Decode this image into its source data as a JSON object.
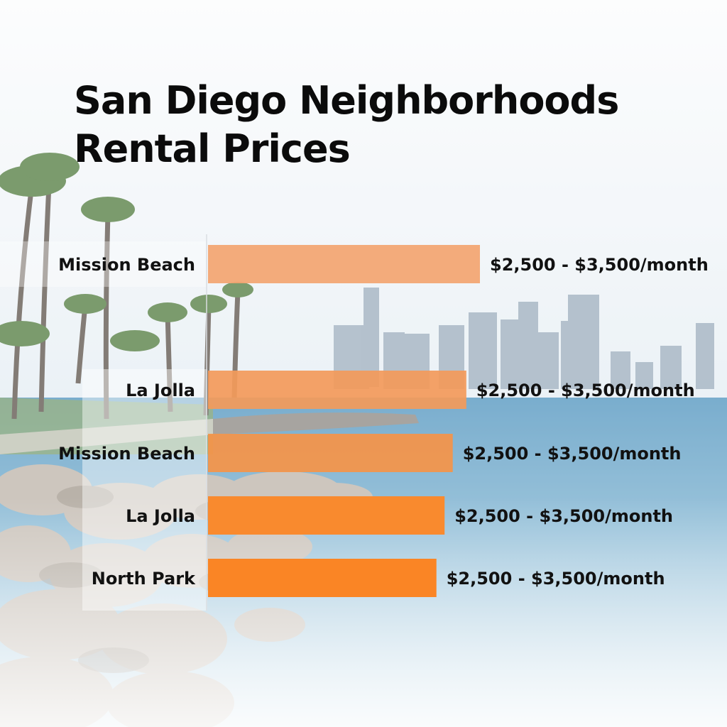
{
  "title_lines": [
    "San Diego Neighborhoods",
    "Rental Prices"
  ],
  "colors": {
    "bar_1": "#f3a470",
    "bar_2": "#f39a5a",
    "bar_3": "#f59448",
    "bar_4": "#f98a2e",
    "bar_5": "#fa8525",
    "text": "#111111"
  },
  "chart_data": {
    "type": "bar",
    "orientation": "horizontal",
    "title": "San Diego Neighborhoods Rental Prices",
    "categories": [
      "Mission Beach",
      "La Jolla",
      "Mission Beach",
      "La Jolla",
      "North Park"
    ],
    "data_labels": [
      "$2,500 - $3,500/month",
      "$2,500 - $3,500/month",
      "$2,500 - $3,500/month",
      "$2,500 - $3,500/month",
      "$2,500 - $3,500/month"
    ],
    "values": [
      100,
      95,
      90,
      87,
      84
    ],
    "xlim": [
      0,
      100
    ],
    "xlabel": "",
    "ylabel": "",
    "grid": false,
    "legend": "none"
  }
}
